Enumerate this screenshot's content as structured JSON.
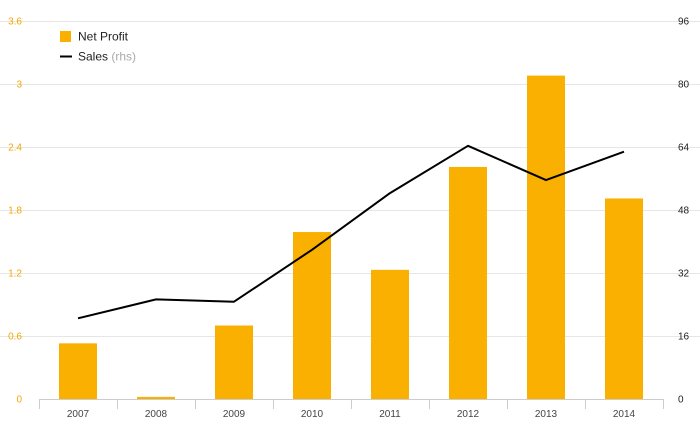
{
  "chart_data": {
    "type": "bar",
    "categories": [
      "2007",
      "2008",
      "2009",
      "2010",
      "2011",
      "2012",
      "2013",
      "2014"
    ],
    "series": [
      {
        "name": "Net Profit",
        "type": "bar",
        "axis": "left",
        "color": "#f9b000",
        "values": [
          0.53,
          0.02,
          0.7,
          1.59,
          1.23,
          2.21,
          3.08,
          1.91
        ]
      },
      {
        "name": "Sales",
        "type": "line",
        "axis": "right",
        "color": "#000000",
        "values": [
          20.5,
          25.3,
          24.7,
          37.9,
          52.3,
          64.3,
          55.6,
          62.8
        ]
      }
    ],
    "legend": {
      "placement": "top-left",
      "entries": [
        {
          "label": "Net Profit",
          "suffix": "",
          "color": "#f9b000",
          "marker": "square"
        },
        {
          "label": "Sales",
          "suffix": "(rhs)",
          "color": "#000000",
          "marker": "line"
        }
      ]
    },
    "y_left": {
      "range": [
        0,
        3.6
      ],
      "ticks": [
        "0",
        "0.6",
        "1.2",
        "1.8",
        "2.4",
        "3",
        "3.6"
      ],
      "color": "#f5a800"
    },
    "y_right": {
      "range": [
        0,
        96
      ],
      "ticks": [
        "0",
        "16",
        "32",
        "48",
        "64",
        "80",
        "96"
      ],
      "color": "#222222"
    },
    "grid": true,
    "title": "",
    "xlabel": "",
    "ylabel": ""
  }
}
